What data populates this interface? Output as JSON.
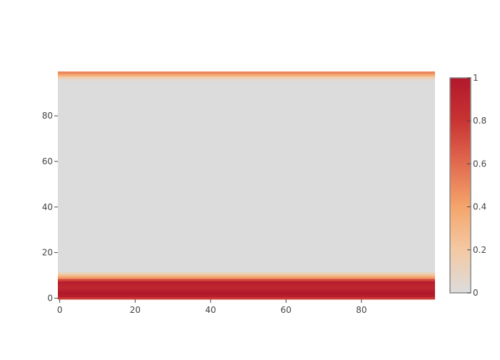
{
  "chart_data": {
    "type": "heatmap",
    "title": "",
    "xlabel": "",
    "ylabel": "",
    "x_range": [
      0,
      99
    ],
    "y_range": [
      0,
      99
    ],
    "x_ticks": [
      0,
      20,
      40,
      60,
      80
    ],
    "x_tick_labels": [
      "0",
      "20",
      "40",
      "60",
      "80"
    ],
    "y_ticks": [
      0,
      20,
      40,
      60,
      80
    ],
    "y_tick_labels": [
      "0",
      "20",
      "40",
      "60",
      "80"
    ],
    "grid": false,
    "colorscale": {
      "name": "RdBu-like (reversed, gray low end)",
      "stops": [
        {
          "value": 0.0,
          "color": "#dcdcdc"
        },
        {
          "value": 0.2,
          "color": "#f4c9a3"
        },
        {
          "value": 0.4,
          "color": "#f4a56b"
        },
        {
          "value": 0.6,
          "color": "#e26b4f"
        },
        {
          "value": 0.8,
          "color": "#c83433"
        },
        {
          "value": 1.0,
          "color": "#b2182b"
        }
      ]
    },
    "colorbar": {
      "range": [
        0,
        1
      ],
      "ticks": [
        0,
        0.2,
        0.4,
        0.6,
        0.8,
        1
      ],
      "tick_labels": [
        "0",
        "0.2",
        "0.4",
        "0.6",
        "0.8",
        "1"
      ],
      "placement": "right"
    },
    "note_values_are_constant_across_x": true,
    "row_values": [
      {
        "y": 0,
        "value": 0.78
      },
      {
        "y": 1,
        "value": 0.95
      },
      {
        "y": 2,
        "value": 1.0
      },
      {
        "y": 3,
        "value": 0.98
      },
      {
        "y": 4,
        "value": 0.92
      },
      {
        "y": 5,
        "value": 0.9
      },
      {
        "y": 6,
        "value": 0.92
      },
      {
        "y": 7,
        "value": 0.96
      },
      {
        "y": 8,
        "value": 0.75
      },
      {
        "y": 9,
        "value": 0.45
      },
      {
        "y": 10,
        "value": 0.28
      },
      {
        "y": 11,
        "value": 0.12
      },
      {
        "y": 12,
        "value": 0.0
      },
      {
        "y": 96,
        "value": 0.05
      },
      {
        "y": 97,
        "value": 0.18
      },
      {
        "y": 98,
        "value": 0.38
      },
      {
        "y": 99,
        "value": 0.5
      }
    ],
    "default_value": 0.0
  }
}
